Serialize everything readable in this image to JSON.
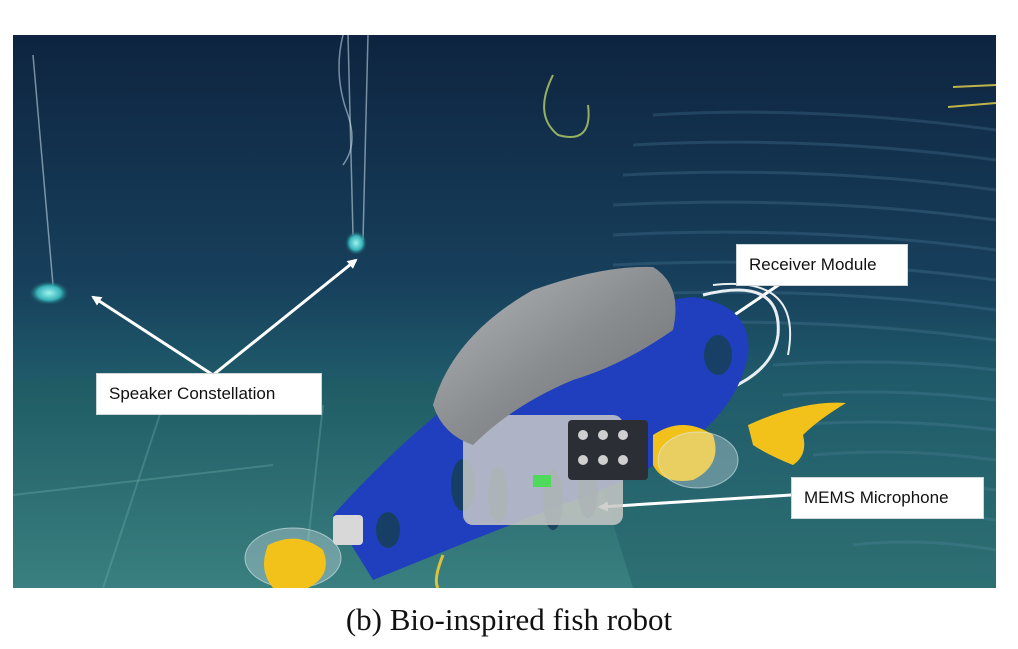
{
  "photo": {
    "annotations": {
      "speaker": "Speaker Constellation",
      "receiver": "Receiver Module",
      "microphone": "MEMS Microphone"
    },
    "colors": {
      "water_deep": "#0f2a44",
      "water_mid": "#1f4f6a",
      "pool_floor": "#2f6a6e",
      "robot_frame": "#1f3fbf",
      "fin_yellow": "#f2c21a",
      "tape_gray": "#8c8f93"
    }
  },
  "caption": "(b) Bio-inspired fish robot"
}
